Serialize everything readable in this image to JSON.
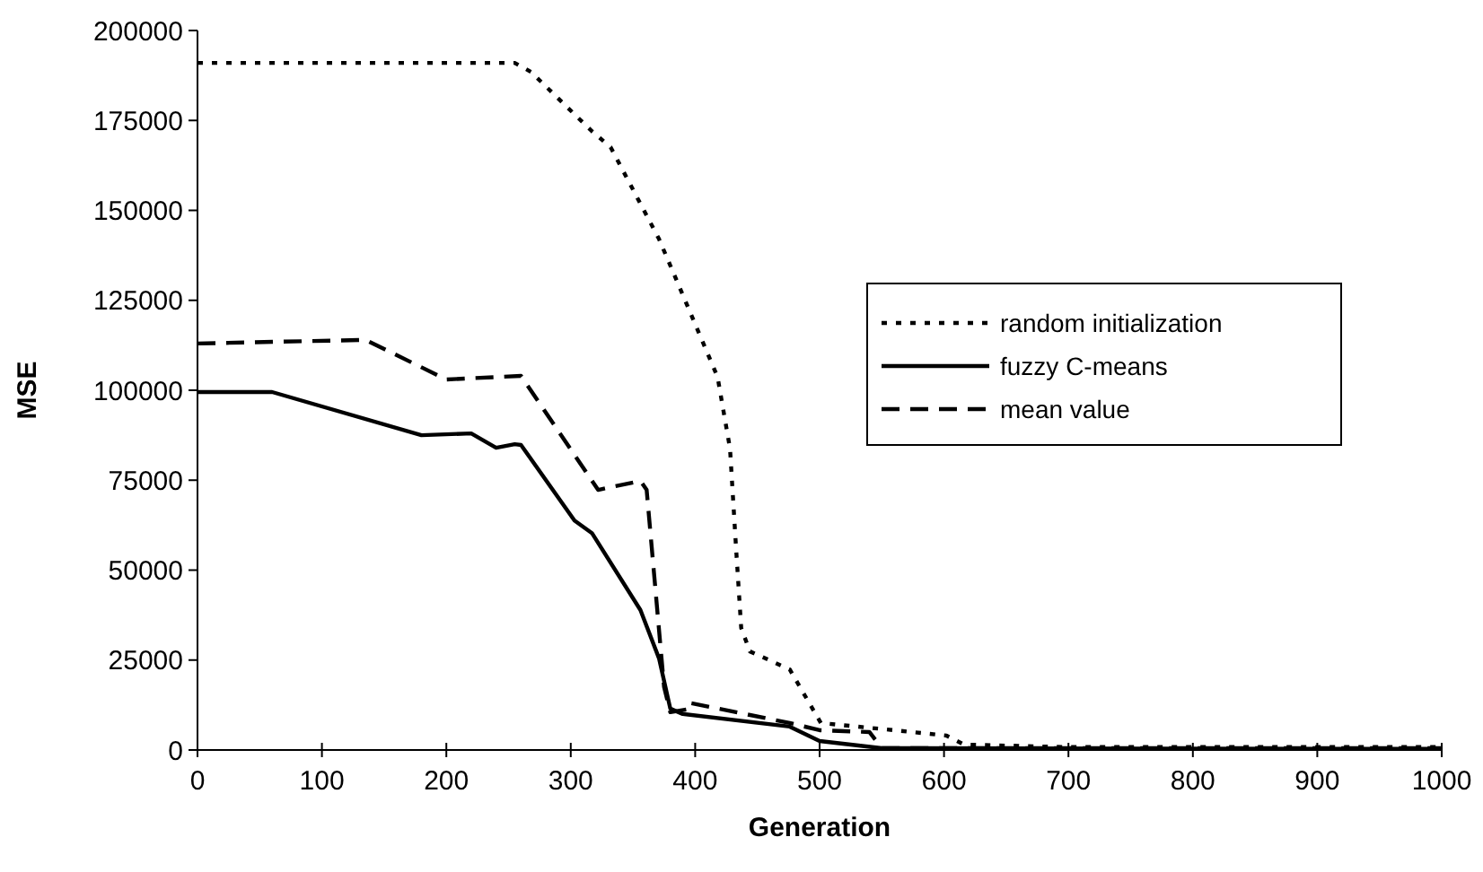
{
  "chart_data": {
    "type": "line",
    "xlabel": "Generation",
    "ylabel": "MSE",
    "xlim": [
      0,
      1000
    ],
    "xticks": [
      0,
      100,
      200,
      300,
      400,
      500,
      600,
      700,
      800,
      900,
      1000
    ],
    "ylim": [
      0,
      200000
    ],
    "yticks": [
      0,
      25000,
      50000,
      75000,
      100000,
      125000,
      150000,
      175000,
      200000
    ],
    "grid": false,
    "legend": "top right",
    "series": [
      {
        "name": "random initialization",
        "color": "#000000",
        "line_style": "dotted",
        "x": [
          0,
          255,
          268,
          317,
          332,
          371,
          418,
          428,
          433,
          437,
          444,
          476,
          501,
          560,
          602,
          616,
          700,
          1000
        ],
        "values": [
          191000,
          191000,
          188500,
          172000,
          167600,
          142000,
          103700,
          83800,
          55400,
          33900,
          27400,
          22400,
          7500,
          5500,
          4000,
          1500,
          800,
          800
        ]
      },
      {
        "name": "fuzzy C-means",
        "color": "#000000",
        "line_style": "solid",
        "x": [
          0,
          60,
          180,
          220,
          240,
          255,
          260,
          303,
          317,
          356,
          371,
          380,
          390,
          476,
          500,
          550,
          1000
        ],
        "values": [
          99500,
          99500,
          87500,
          88000,
          84000,
          85000,
          84800,
          63800,
          60300,
          38900,
          25400,
          11500,
          10000,
          6500,
          2500,
          500,
          300
        ]
      },
      {
        "name": "mean value",
        "color": "#000000",
        "line_style": "dashed",
        "x": [
          0,
          135,
          200,
          260,
          322,
          356,
          361,
          375,
          380,
          397,
          397,
          476,
          500,
          540,
          550,
          1000
        ],
        "values": [
          113000,
          114000,
          103000,
          104000,
          72300,
          74800,
          72300,
          17500,
          10500,
          11500,
          13000,
          7500,
          5500,
          5000,
          500,
          500
        ]
      }
    ]
  }
}
